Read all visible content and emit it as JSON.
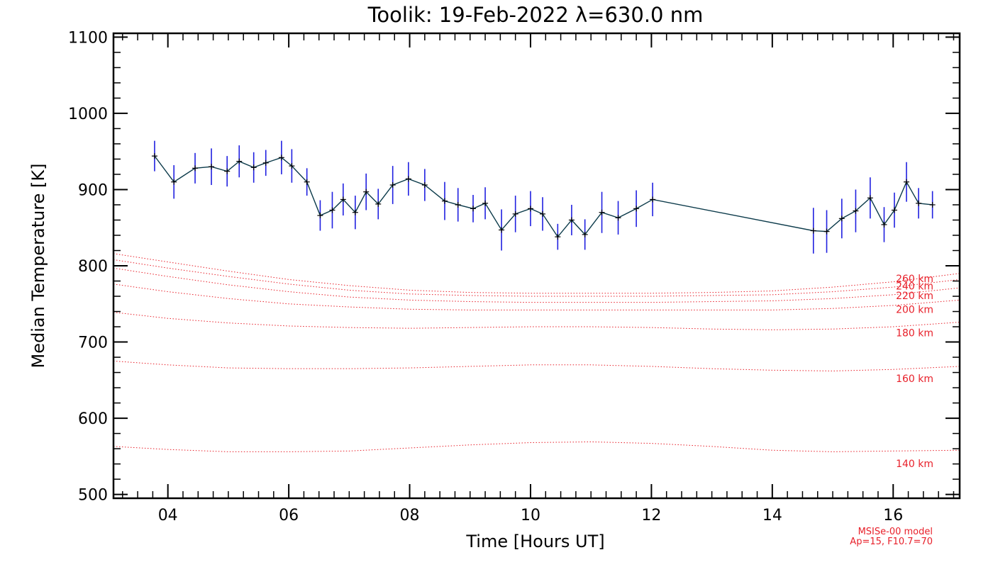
{
  "chart_data": {
    "type": "line",
    "title": "Toolik: 19-Feb-2022 λ=630.0 nm",
    "xlabel": "Time [Hours UT]",
    "ylabel": "Median Temperature [K]",
    "xlim": [
      3.1,
      17.1
    ],
    "ylim": [
      495,
      1105
    ],
    "x_ticks": [
      4,
      6,
      8,
      10,
      12,
      14,
      16
    ],
    "x_tick_labels": [
      "04",
      "06",
      "08",
      "10",
      "12",
      "14",
      "16"
    ],
    "y_ticks": [
      500,
      600,
      700,
      800,
      900,
      1000,
      1100
    ],
    "y_tick_labels": [
      "500",
      "600",
      "700",
      "800",
      "900",
      "1000",
      "1100"
    ],
    "grid": false,
    "colors": {
      "series_line": "#0b3a4a",
      "error_bar": "#2020e0",
      "marker": "#000000",
      "model": "#e8202a"
    },
    "series": [
      {
        "x": [
          3.78,
          4.1,
          4.45,
          4.72,
          4.98,
          5.18,
          5.42,
          5.62,
          5.88,
          6.05,
          6.3,
          6.52,
          6.72,
          6.9,
          7.1,
          7.28,
          7.48,
          7.72,
          7.98,
          8.25,
          8.58,
          8.8,
          9.05,
          9.25,
          9.52,
          9.75,
          10.0,
          10.2,
          10.45,
          10.68,
          10.9,
          11.18,
          11.45,
          11.75,
          12.02,
          14.68,
          14.9,
          15.15,
          15.38,
          15.62,
          15.85,
          16.02,
          16.22,
          16.42,
          16.65
        ],
        "values": [
          944,
          910,
          928,
          930,
          924,
          937,
          929,
          935,
          942,
          931,
          910,
          866,
          873,
          887,
          870,
          897,
          881,
          906,
          914,
          906,
          885,
          880,
          875,
          882,
          847,
          868,
          875,
          868,
          838,
          860,
          841,
          870,
          863,
          875,
          887,
          846,
          845,
          862,
          872,
          889,
          854,
          873,
          910,
          882,
          880
        ],
        "errors": [
          20,
          22,
          20,
          24,
          20,
          21,
          20,
          17,
          22,
          22,
          18,
          20,
          24,
          21,
          22,
          24,
          20,
          25,
          22,
          21,
          25,
          22,
          18,
          21,
          27,
          24,
          23,
          22,
          17,
          20,
          20,
          27,
          22,
          24,
          22,
          30,
          28,
          26,
          28,
          27,
          23,
          23,
          26,
          20,
          18
        ]
      }
    ],
    "model": {
      "name": "MSISe-00 model",
      "params": "Ap=15, F10.7=70",
      "x": [
        3.1,
        4,
        5,
        6,
        7,
        8,
        9,
        10,
        11,
        12,
        13,
        14,
        15,
        16,
        17.1
      ],
      "curves": [
        {
          "label": "140 km",
          "values": [
            563,
            559,
            556,
            556,
            557,
            561,
            565,
            568,
            569,
            567,
            563,
            558,
            556,
            557,
            558
          ]
        },
        {
          "label": "160 km",
          "values": [
            675,
            670,
            666,
            665,
            665,
            666,
            668,
            670,
            670,
            668,
            665,
            663,
            662,
            664,
            668
          ]
        },
        {
          "label": "180 km",
          "values": [
            739,
            731,
            725,
            721,
            719,
            718,
            719,
            720,
            720,
            719,
            717,
            716,
            717,
            720,
            726
          ]
        },
        {
          "label": "200 km",
          "values": [
            776,
            766,
            757,
            750,
            746,
            743,
            742,
            742,
            742,
            742,
            742,
            742,
            744,
            748,
            755
          ]
        },
        {
          "label": "220 km",
          "values": [
            797,
            786,
            775,
            766,
            759,
            755,
            753,
            752,
            752,
            752,
            753,
            754,
            757,
            762,
            771
          ]
        },
        {
          "label": "240 km",
          "values": [
            808,
            797,
            786,
            776,
            768,
            763,
            761,
            760,
            760,
            760,
            761,
            762,
            766,
            772,
            782
          ]
        },
        {
          "label": "260 km",
          "values": [
            816,
            805,
            793,
            782,
            774,
            768,
            765,
            764,
            764,
            764,
            765,
            767,
            772,
            779,
            790
          ]
        }
      ]
    }
  }
}
